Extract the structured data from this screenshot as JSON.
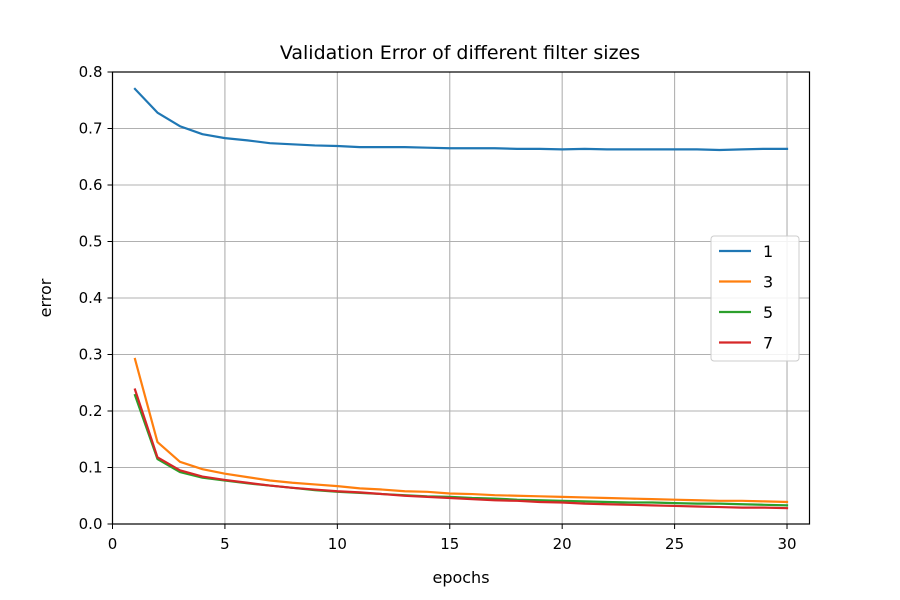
{
  "chart_data": {
    "type": "line",
    "title": "Validation Error of different filter sizes",
    "xlabel": "epochs",
    "ylabel": "error",
    "xlim": [
      0,
      31
    ],
    "ylim": [
      0.0,
      0.8
    ],
    "xticks": [
      0,
      5,
      10,
      15,
      20,
      25,
      30
    ],
    "yticks": [
      0.0,
      0.1,
      0.2,
      0.3,
      0.4,
      0.5,
      0.6,
      0.7,
      0.8
    ],
    "xtick_labels": [
      "0",
      "5",
      "10",
      "15",
      "20",
      "25",
      "30"
    ],
    "ytick_labels": [
      "0.0",
      "0.1",
      "0.2",
      "0.3",
      "0.4",
      "0.5",
      "0.6",
      "0.7",
      "0.8"
    ],
    "grid": true,
    "legend_position": "center-right",
    "x": [
      1,
      2,
      3,
      4,
      5,
      6,
      7,
      8,
      9,
      10,
      11,
      12,
      13,
      14,
      15,
      16,
      17,
      18,
      19,
      20,
      21,
      22,
      23,
      24,
      25,
      26,
      27,
      28,
      29,
      30
    ],
    "series": [
      {
        "name": "1",
        "color": "#1f77b4",
        "values": [
          0.77,
          0.728,
          0.704,
          0.69,
          0.683,
          0.679,
          0.674,
          0.672,
          0.67,
          0.669,
          0.667,
          0.667,
          0.667,
          0.666,
          0.665,
          0.665,
          0.665,
          0.664,
          0.664,
          0.663,
          0.664,
          0.663,
          0.663,
          0.663,
          0.663,
          0.663,
          0.662,
          0.663,
          0.664,
          0.664
        ]
      },
      {
        "name": "3",
        "color": "#ff7f0e",
        "values": [
          0.292,
          0.145,
          0.11,
          0.097,
          0.089,
          0.083,
          0.077,
          0.073,
          0.07,
          0.067,
          0.063,
          0.061,
          0.058,
          0.057,
          0.054,
          0.053,
          0.051,
          0.05,
          0.049,
          0.048,
          0.047,
          0.046,
          0.045,
          0.044,
          0.043,
          0.042,
          0.041,
          0.041,
          0.04,
          0.039
        ]
      },
      {
        "name": "5",
        "color": "#2ca02c",
        "values": [
          0.228,
          0.115,
          0.092,
          0.082,
          0.077,
          0.072,
          0.068,
          0.064,
          0.06,
          0.057,
          0.055,
          0.053,
          0.051,
          0.049,
          0.048,
          0.046,
          0.045,
          0.043,
          0.042,
          0.041,
          0.04,
          0.039,
          0.038,
          0.038,
          0.037,
          0.036,
          0.036,
          0.035,
          0.034,
          0.033
        ]
      },
      {
        "name": "7",
        "color": "#d62728",
        "values": [
          0.238,
          0.118,
          0.095,
          0.084,
          0.078,
          0.073,
          0.068,
          0.064,
          0.061,
          0.058,
          0.056,
          0.053,
          0.05,
          0.048,
          0.046,
          0.044,
          0.042,
          0.041,
          0.039,
          0.038,
          0.036,
          0.035,
          0.034,
          0.033,
          0.032,
          0.031,
          0.03,
          0.029,
          0.029,
          0.028
        ]
      }
    ]
  }
}
